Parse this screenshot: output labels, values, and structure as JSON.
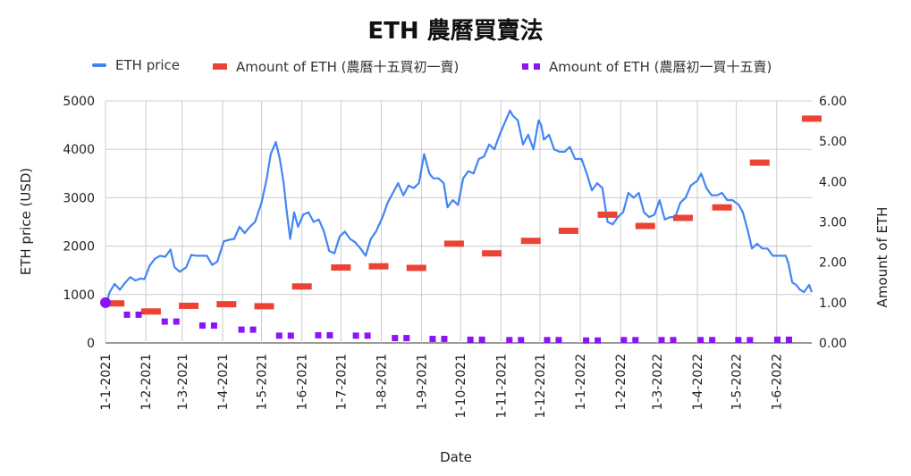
{
  "chart_data": {
    "type": "line",
    "title": "ETH 農曆買賣法",
    "xlabel": "Date",
    "ylabel": "ETH price (USD)",
    "y2label": "Amount of ETH",
    "x_tick_labels": [
      "1-1-2021",
      "1-2-2021",
      "1-3-2021",
      "1-4-2021",
      "1-5-2021",
      "1-6-2021",
      "1-7-2021",
      "1-8-2021",
      "1-9-2021",
      "1-10-2021",
      "1-11-2021",
      "1-12-2021",
      "1-1-2022",
      "1-2-2022",
      "1-3-2022",
      "1-4-2022",
      "1-5-2022",
      "1-6-2022"
    ],
    "y_ticks": [
      "0",
      "1000",
      "2000",
      "3000",
      "4000",
      "5000"
    ],
    "y2_ticks": [
      "0.00",
      "1.00",
      "2.00",
      "3.00",
      "4.00",
      "5.00",
      "6.00"
    ],
    "ylim": [
      0,
      5000
    ],
    "y2lim": [
      0,
      6
    ],
    "xlim": [
      "2021-01-01",
      "2022-06-28"
    ],
    "grid": true,
    "legend_position": "top",
    "series": [
      {
        "name": "ETH price",
        "type": "line",
        "axis": "left",
        "color": "#4285f4",
        "points": [
          [
            "2021-01-01",
            740
          ],
          [
            "2021-01-04",
            1040
          ],
          [
            "2021-01-08",
            1220
          ],
          [
            "2021-01-12",
            1100
          ],
          [
            "2021-01-16",
            1240
          ],
          [
            "2021-01-20",
            1360
          ],
          [
            "2021-01-24",
            1290
          ],
          [
            "2021-01-28",
            1330
          ],
          [
            "2021-01-31",
            1320
          ],
          [
            "2021-02-04",
            1600
          ],
          [
            "2021-02-08",
            1740
          ],
          [
            "2021-02-12",
            1800
          ],
          [
            "2021-02-16",
            1780
          ],
          [
            "2021-02-20",
            1930
          ],
          [
            "2021-02-23",
            1570
          ],
          [
            "2021-02-27",
            1470
          ],
          [
            "2021-03-04",
            1560
          ],
          [
            "2021-03-08",
            1820
          ],
          [
            "2021-03-12",
            1800
          ],
          [
            "2021-03-16",
            1800
          ],
          [
            "2021-03-20",
            1800
          ],
          [
            "2021-03-24",
            1610
          ],
          [
            "2021-03-28",
            1680
          ],
          [
            "2021-04-02",
            2100
          ],
          [
            "2021-04-06",
            2130
          ],
          [
            "2021-04-10",
            2150
          ],
          [
            "2021-04-14",
            2400
          ],
          [
            "2021-04-18",
            2270
          ],
          [
            "2021-04-22",
            2400
          ],
          [
            "2021-04-26",
            2500
          ],
          [
            "2021-05-01",
            2900
          ],
          [
            "2021-05-05",
            3400
          ],
          [
            "2021-05-08",
            3900
          ],
          [
            "2021-05-12",
            4150
          ],
          [
            "2021-05-15",
            3800
          ],
          [
            "2021-05-18",
            3300
          ],
          [
            "2021-05-20",
            2800
          ],
          [
            "2021-05-23",
            2150
          ],
          [
            "2021-05-26",
            2700
          ],
          [
            "2021-05-29",
            2400
          ],
          [
            "2021-06-02",
            2650
          ],
          [
            "2021-06-06",
            2700
          ],
          [
            "2021-06-10",
            2500
          ],
          [
            "2021-06-14",
            2550
          ],
          [
            "2021-06-18",
            2300
          ],
          [
            "2021-06-22",
            1900
          ],
          [
            "2021-06-26",
            1850
          ],
          [
            "2021-06-30",
            2200
          ],
          [
            "2021-07-04",
            2300
          ],
          [
            "2021-07-08",
            2150
          ],
          [
            "2021-07-12",
            2080
          ],
          [
            "2021-07-16",
            1950
          ],
          [
            "2021-07-20",
            1800
          ],
          [
            "2021-07-24",
            2150
          ],
          [
            "2021-07-28",
            2300
          ],
          [
            "2021-08-02",
            2600
          ],
          [
            "2021-08-06",
            2900
          ],
          [
            "2021-08-10",
            3100
          ],
          [
            "2021-08-14",
            3300
          ],
          [
            "2021-08-18",
            3050
          ],
          [
            "2021-08-22",
            3250
          ],
          [
            "2021-08-26",
            3200
          ],
          [
            "2021-08-30",
            3300
          ],
          [
            "2021-09-03",
            3900
          ],
          [
            "2021-09-07",
            3500
          ],
          [
            "2021-09-10",
            3400
          ],
          [
            "2021-09-14",
            3400
          ],
          [
            "2021-09-18",
            3300
          ],
          [
            "2021-09-21",
            2800
          ],
          [
            "2021-09-25",
            2950
          ],
          [
            "2021-09-29",
            2850
          ],
          [
            "2021-10-03",
            3400
          ],
          [
            "2021-10-07",
            3550
          ],
          [
            "2021-10-11",
            3500
          ],
          [
            "2021-10-15",
            3800
          ],
          [
            "2021-10-19",
            3850
          ],
          [
            "2021-10-23",
            4100
          ],
          [
            "2021-10-27",
            4000
          ],
          [
            "2021-10-31",
            4300
          ],
          [
            "2021-11-04",
            4550
          ],
          [
            "2021-11-08",
            4800
          ],
          [
            "2021-11-10",
            4700
          ],
          [
            "2021-11-14",
            4600
          ],
          [
            "2021-11-18",
            4100
          ],
          [
            "2021-11-22",
            4300
          ],
          [
            "2021-11-26",
            4000
          ],
          [
            "2021-11-30",
            4600
          ],
          [
            "2021-12-02",
            4500
          ],
          [
            "2021-12-04",
            4200
          ],
          [
            "2021-12-08",
            4300
          ],
          [
            "2021-12-12",
            4000
          ],
          [
            "2021-12-16",
            3950
          ],
          [
            "2021-12-20",
            3950
          ],
          [
            "2021-12-24",
            4050
          ],
          [
            "2021-12-28",
            3800
          ],
          [
            "2022-01-02",
            3800
          ],
          [
            "2022-01-06",
            3500
          ],
          [
            "2022-01-10",
            3150
          ],
          [
            "2022-01-14",
            3300
          ],
          [
            "2022-01-18",
            3200
          ],
          [
            "2022-01-22",
            2500
          ],
          [
            "2022-01-26",
            2450
          ],
          [
            "2022-01-30",
            2600
          ],
          [
            "2022-02-03",
            2700
          ],
          [
            "2022-02-07",
            3100
          ],
          [
            "2022-02-11",
            3000
          ],
          [
            "2022-02-15",
            3100
          ],
          [
            "2022-02-19",
            2700
          ],
          [
            "2022-02-23",
            2600
          ],
          [
            "2022-02-27",
            2650
          ],
          [
            "2022-03-03",
            2950
          ],
          [
            "2022-03-07",
            2550
          ],
          [
            "2022-03-11",
            2600
          ],
          [
            "2022-03-15",
            2600
          ],
          [
            "2022-03-19",
            2900
          ],
          [
            "2022-03-23",
            3000
          ],
          [
            "2022-03-27",
            3250
          ],
          [
            "2022-04-01",
            3350
          ],
          [
            "2022-04-04",
            3500
          ],
          [
            "2022-04-08",
            3200
          ],
          [
            "2022-04-12",
            3050
          ],
          [
            "2022-04-16",
            3050
          ],
          [
            "2022-04-20",
            3100
          ],
          [
            "2022-04-24",
            2950
          ],
          [
            "2022-04-28",
            2950
          ],
          [
            "2022-05-03",
            2850
          ],
          [
            "2022-05-06",
            2700
          ],
          [
            "2022-05-10",
            2300
          ],
          [
            "2022-05-13",
            1950
          ],
          [
            "2022-05-17",
            2050
          ],
          [
            "2022-05-21",
            1950
          ],
          [
            "2022-05-25",
            1950
          ],
          [
            "2022-05-29",
            1800
          ],
          [
            "2022-06-03",
            1800
          ],
          [
            "2022-06-08",
            1800
          ],
          [
            "2022-06-10",
            1650
          ],
          [
            "2022-06-13",
            1250
          ],
          [
            "2022-06-16",
            1200
          ],
          [
            "2022-06-19",
            1100
          ],
          [
            "2022-06-22",
            1050
          ],
          [
            "2022-06-26",
            1200
          ],
          [
            "2022-06-28",
            1050
          ]
        ]
      },
      {
        "name": "Amount of ETH (農曆十五買初一賣)",
        "type": "marker",
        "axis": "right",
        "color": "#ea4335",
        "points": [
          [
            "2021-01-08",
            0.98
          ],
          [
            "2021-02-05",
            0.78
          ],
          [
            "2021-03-06",
            0.92
          ],
          [
            "2021-04-04",
            0.96
          ],
          [
            "2021-05-03",
            0.91
          ],
          [
            "2021-06-01",
            1.4
          ],
          [
            "2021-07-01",
            1.87
          ],
          [
            "2021-07-30",
            1.9
          ],
          [
            "2021-08-28",
            1.86
          ],
          [
            "2021-09-26",
            2.46
          ],
          [
            "2021-10-25",
            2.22
          ],
          [
            "2021-11-24",
            2.53
          ],
          [
            "2021-12-23",
            2.78
          ],
          [
            "2022-01-22",
            3.18
          ],
          [
            "2022-02-20",
            2.9
          ],
          [
            "2022-03-21",
            3.1
          ],
          [
            "2022-04-20",
            3.36
          ],
          [
            "2022-05-19",
            4.47
          ],
          [
            "2022-06-28",
            5.56
          ]
        ]
      },
      {
        "name": "Amount of ETH (農曆初一買十五賣)",
        "type": "marker",
        "axis": "right",
        "color": "#8a14f5",
        "points": [
          [
            "2021-01-01",
            1.0
          ],
          [
            "2021-01-22",
            0.7
          ],
          [
            "2021-02-20",
            0.53
          ],
          [
            "2021-03-21",
            0.43
          ],
          [
            "2021-04-20",
            0.33
          ],
          [
            "2021-05-19",
            0.18
          ],
          [
            "2021-06-18",
            0.19
          ],
          [
            "2021-07-17",
            0.18
          ],
          [
            "2021-08-16",
            0.12
          ],
          [
            "2021-09-14",
            0.1
          ],
          [
            "2021-10-13",
            0.08
          ],
          [
            "2021-11-12",
            0.07
          ],
          [
            "2021-12-11",
            0.07
          ],
          [
            "2022-01-10",
            0.06
          ],
          [
            "2022-02-08",
            0.07
          ],
          [
            "2022-03-09",
            0.07
          ],
          [
            "2022-04-08",
            0.07
          ],
          [
            "2022-05-07",
            0.07
          ],
          [
            "2022-06-06",
            0.08
          ]
        ]
      }
    ]
  }
}
